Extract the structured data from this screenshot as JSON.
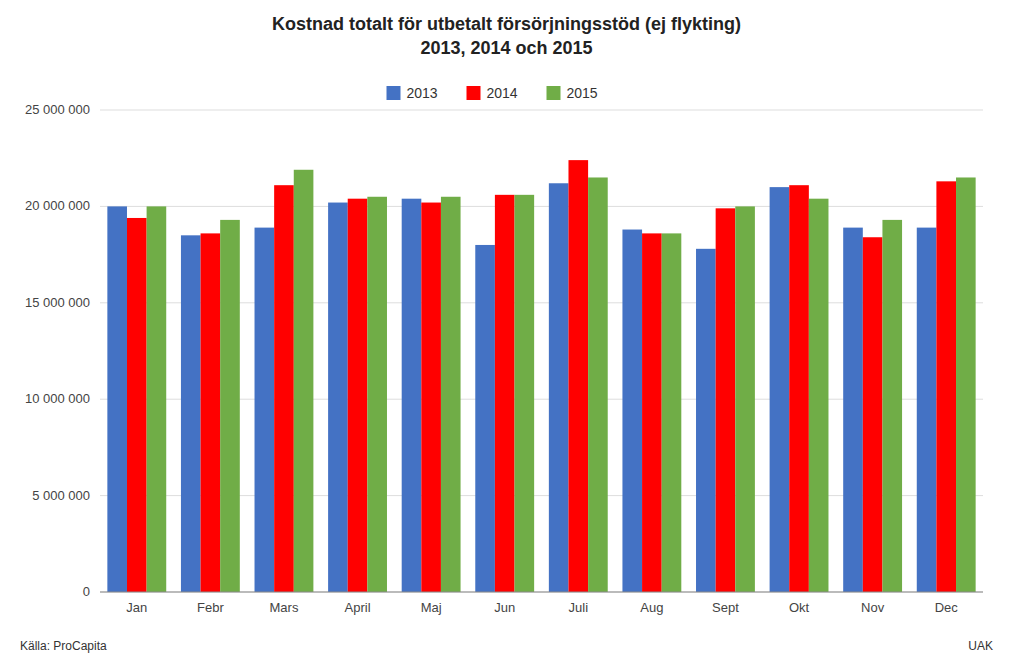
{
  "chart_data": {
    "type": "bar",
    "title": "Kostnad totalt för utbetalt försörjningsstöd (ej flykting)",
    "subtitle": "2013, 2014 och 2015",
    "categories": [
      "Jan",
      "Febr",
      "Mars",
      "April",
      "Maj",
      "Jun",
      "Juli",
      "Aug",
      "Sept",
      "Okt",
      "Nov",
      "Dec"
    ],
    "series": [
      {
        "name": "2013",
        "color": "#4472C4",
        "values": [
          20000000,
          18500000,
          18900000,
          20200000,
          20400000,
          18000000,
          21200000,
          18800000,
          17800000,
          21000000,
          18900000,
          18900000
        ]
      },
      {
        "name": "2014",
        "color": "#FF0000",
        "values": [
          19400000,
          18600000,
          21100000,
          20400000,
          20200000,
          20600000,
          22400000,
          18600000,
          19900000,
          21100000,
          18400000,
          21300000
        ]
      },
      {
        "name": "2015",
        "color": "#70AD47",
        "values": [
          20000000,
          19300000,
          21900000,
          20500000,
          20500000,
          20600000,
          21500000,
          18600000,
          20000000,
          20400000,
          19300000,
          21500000
        ]
      }
    ],
    "ylim": [
      0,
      25000000
    ],
    "yticks": [
      0,
      {
        "value": 5000000,
        "label": "5 000 000"
      },
      {
        "value": 10000000,
        "label": "10 000 000"
      },
      {
        "value": 15000000,
        "label": "15 000 000"
      },
      {
        "value": 20000000,
        "label": "20 000 000"
      },
      {
        "value": 25000000,
        "label": "25 000 000"
      }
    ],
    "grid": true,
    "legend": "top",
    "annotations": [
      "Källa: ProCapita",
      "UAK"
    ]
  }
}
